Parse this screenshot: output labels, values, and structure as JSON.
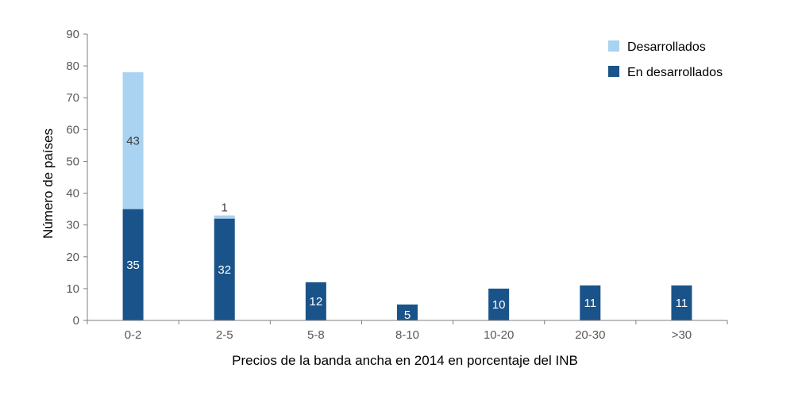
{
  "chart_data": {
    "type": "bar",
    "stacked": true,
    "categories": [
      "0-2",
      "2-5",
      "5-8",
      "8-10",
      "10-20",
      "20-30",
      ">30"
    ],
    "series": [
      {
        "name": "En desarrollados",
        "values": [
          35,
          32,
          12,
          5,
          10,
          11,
          11
        ],
        "color": "#1a5389"
      },
      {
        "name": "Desarrollados",
        "values": [
          43,
          1,
          0,
          0,
          0,
          0,
          0
        ],
        "color": "#a9d3f0"
      }
    ],
    "data_labels": [
      [
        "35",
        "32",
        "12",
        "5",
        "10",
        "11",
        "11"
      ],
      [
        "43",
        "1",
        "",
        "",
        "",
        "",
        ""
      ]
    ],
    "title": "",
    "xlabel": "Precios de la banda ancha en 2014 en porcentaje del INB",
    "ylabel": "Número de países",
    "ylim": [
      0,
      90
    ],
    "yticks": [
      "0",
      "10",
      "20",
      "30",
      "40",
      "50",
      "60",
      "70",
      "80",
      "90"
    ],
    "grid": false,
    "legend_position": "top-right",
    "legend_order": [
      "Desarrollados",
      "En desarrollados"
    ],
    "colors": {
      "axis": "#7f7f7f",
      "tick_text": "#595959",
      "label_on_dark": "#ffffff",
      "label_on_light": "#404040"
    }
  }
}
